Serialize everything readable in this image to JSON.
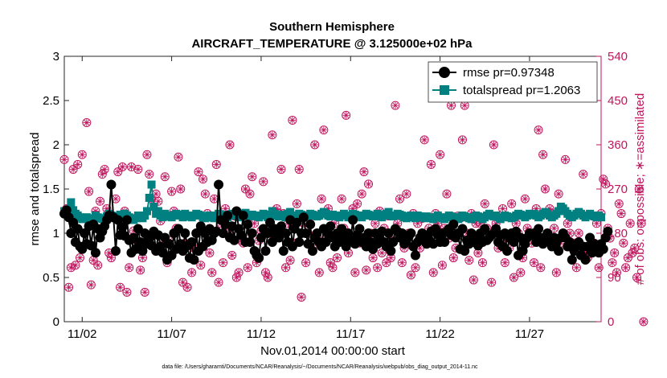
{
  "chart_data": {
    "type": "line",
    "title": "Southern Hemisphere",
    "subtitle": "AIRCRAFT_TEMPERATURE @ 3.125000e+02 hPa",
    "xlabel": "Nov.01,2014 00:00:00 start",
    "ylabel": "rmse and totalspread",
    "ylabel_right": "# of obs: o=possible; ∗=assimilated",
    "footnote": "data file: /Users/gharamti/Documents/NCAR/Reanalysis/~/Documents/NCAR/Reanalysis/webpub/obs_diag_output_2014-11.nc",
    "xlim": [
      1.0,
      31.0
    ],
    "ylim": [
      0,
      3
    ],
    "ylim_right": [
      0,
      540
    ],
    "x_ticks": [
      2,
      7,
      12,
      17,
      22,
      27
    ],
    "x_tick_labels": [
      "11/02",
      "11/07",
      "11/12",
      "11/17",
      "11/22",
      "11/27"
    ],
    "y_ticks": [
      0,
      0.5,
      1,
      1.5,
      2,
      2.5,
      3
    ],
    "y_tick_labels": [
      "0",
      "0.5",
      "1",
      "1.5",
      "2",
      "2.5",
      "3"
    ],
    "y_right_ticks": [
      0,
      90,
      180,
      270,
      360,
      450,
      540
    ],
    "y_right_tick_labels": [
      "0",
      "90",
      "180",
      "270",
      "360",
      "450",
      "540"
    ],
    "x_step_days": 0.125,
    "x_start": 1.0,
    "colors": {
      "rmse": "#000000",
      "totalspread": "#008080",
      "obs": "#c0155d"
    },
    "series": [
      {
        "name": "rmse pr=0.97348",
        "values": [
          1.22,
          1.26,
          1.18,
          1.0,
          1.12,
          0.9,
          1.05,
          0.85,
          0.82,
          1.0,
          0.88,
          1.08,
          0.86,
          1.1,
          0.78,
          1.05,
          0.95,
          1.02,
          1.08,
          1.15,
          1.2,
          1.55,
          1.18,
          0.8,
          1.15,
          0.98,
          1.07,
          0.97,
          1.15,
          0.92,
          0.78,
          0.95,
          0.82,
          1.05,
          0.9,
          0.8,
          1.0,
          0.88,
          0.94,
          0.86,
          1.02,
          0.8,
          0.98,
          0.85,
          0.78,
          0.95,
          0.7,
          0.88,
          0.75,
          1.0,
          0.82,
          1.05,
          0.88,
          0.8,
          1.0,
          0.86,
          0.72,
          0.9,
          0.7,
          1.0,
          0.8,
          1.08,
          0.85,
          1.0,
          0.9,
          1.05,
          0.92,
          1.0,
          1.02,
          1.55,
          1.15,
          1.0,
          1.1,
          1.2,
          0.95,
          1.08,
          0.92,
          1.25,
          1.05,
          0.98,
          1.2,
          0.9,
          1.1,
          0.9,
          1.0,
          0.8,
          0.75,
          0.72,
          0.95,
          1.05,
          0.8,
          1.0,
          1.12,
          0.9,
          1.05,
          1.0,
          0.95,
          1.08,
          0.8,
          1.0,
          0.9,
          1.15,
          0.85,
          1.05,
          1.12,
          0.9,
          1.0,
          1.18,
          1.0,
          0.88,
          1.1,
          0.8,
          0.95,
          1.0,
          0.9,
          0.85,
          1.05,
          0.9,
          1.0,
          1.08,
          0.95,
          0.85,
          1.0,
          0.9,
          1.05,
          0.95,
          0.85,
          1.0,
          0.92,
          1.15,
          0.88,
          0.98,
          1.05,
          0.9,
          0.95,
          0.85,
          1.0,
          0.9,
          0.82,
          1.0,
          0.88,
          0.95,
          1.02,
          0.9,
          0.85,
          1.0,
          0.8,
          0.9,
          1.05,
          1.02,
          0.95,
          1.0,
          0.88,
          0.92,
          0.96,
          1.0,
          0.85,
          0.75,
          0.9,
          0.95,
          1.0,
          0.96,
          0.88,
          0.92,
          1.02,
          0.88,
          1.05,
          0.98,
          0.9,
          1.0,
          0.9,
          1.02,
          1.05,
          0.98,
          1.1,
          0.95,
          1.0,
          0.82,
          1.05,
          0.8,
          0.92,
          0.88,
          1.0,
          0.9,
          0.95,
          0.86,
          1.0,
          0.9,
          1.05,
          0.92,
          0.95,
          0.98,
          1.0,
          1.05,
          0.9,
          0.98,
          0.85,
          1.0,
          0.8,
          0.95,
          1.0,
          0.9,
          1.02,
          0.75,
          0.95,
          0.8,
          0.88,
          0.95,
          1.0,
          0.98,
          1.0,
          0.9,
          1.05,
          0.95,
          0.88,
          0.92,
          1.0,
          0.9,
          0.85,
          0.95,
          0.9,
          0.8,
          0.95,
          1.0,
          0.95,
          0.85,
          0.9,
          0.7,
          0.8,
          0.85,
          0.9,
          0.75,
          0.85,
          0.7,
          0.85,
          0.95,
          0.78,
          0.88,
          0.8,
          0.78,
          0.88,
          0.82,
          0.95,
          1.02
        ],
        "marker": "circle"
      },
      {
        "name": "totalspread pr=1.2063",
        "values": [
          1.25,
          1.24,
          1.27,
          1.35,
          1.26,
          1.22,
          1.2,
          1.18,
          1.16,
          1.17,
          1.18,
          1.15,
          1.16,
          1.17,
          1.2,
          1.18,
          1.17,
          1.16,
          1.15,
          1.19,
          1.22,
          1.2,
          1.18,
          1.17,
          1.19,
          1.21,
          1.2,
          1.22,
          1.2,
          1.18,
          1.16,
          1.15,
          1.17,
          1.2,
          1.18,
          1.17,
          1.2,
          1.25,
          1.4,
          1.55,
          1.3,
          1.22,
          1.25,
          1.2,
          1.18,
          1.22,
          1.2,
          1.19,
          1.18,
          1.2,
          1.22,
          1.21,
          1.2,
          1.18,
          1.22,
          1.2,
          1.19,
          1.18,
          1.2,
          1.22,
          1.21,
          1.2,
          1.18,
          1.17,
          1.19,
          1.2,
          1.18,
          1.17,
          1.2,
          1.22,
          1.2,
          1.21,
          1.19,
          1.18,
          1.2,
          1.22,
          1.21,
          1.2,
          1.18,
          1.2,
          1.22,
          1.23,
          1.2,
          1.19,
          1.21,
          1.2,
          1.19,
          1.18,
          1.2,
          1.22,
          1.2,
          1.18,
          1.21,
          1.25,
          1.22,
          1.2,
          1.19,
          1.21,
          1.2,
          1.18,
          1.22,
          1.24,
          1.2,
          1.18,
          1.2,
          1.22,
          1.21,
          1.2,
          1.19,
          1.2,
          1.22,
          1.21,
          1.2,
          1.19,
          1.2,
          1.22,
          1.24,
          1.22,
          1.2,
          1.19,
          1.21,
          1.2,
          1.19,
          1.18,
          1.2,
          1.22,
          1.2,
          1.18,
          1.2,
          1.22,
          1.21,
          1.2,
          1.19,
          1.18,
          1.2,
          1.22,
          1.21,
          1.2,
          1.19,
          1.2,
          1.22,
          1.2,
          1.18,
          1.2,
          1.22,
          1.24,
          1.2,
          1.19,
          1.2,
          1.22,
          1.21,
          1.2,
          1.18,
          1.17,
          1.19,
          1.2,
          1.18,
          1.17,
          1.2,
          1.19,
          1.18,
          1.17,
          1.19,
          1.18,
          1.17,
          1.16,
          1.18,
          1.2,
          1.18,
          1.17,
          1.16,
          1.18,
          1.2,
          1.19,
          1.18,
          1.17,
          1.16,
          1.18,
          1.2,
          1.19,
          1.18,
          1.17,
          1.16,
          1.18,
          1.2,
          1.19,
          1.18,
          1.16,
          1.18,
          1.2,
          1.22,
          1.2,
          1.19,
          1.2,
          1.18,
          1.16,
          1.18,
          1.2,
          1.19,
          1.18,
          1.17,
          1.18,
          1.2,
          1.22,
          1.21,
          1.2,
          1.18,
          1.2,
          1.22,
          1.21,
          1.22,
          1.2,
          1.18,
          1.2,
          1.22,
          1.24,
          1.22,
          1.2,
          1.18,
          1.2,
          1.22,
          1.25,
          1.3,
          1.28,
          1.25,
          1.22,
          1.2,
          1.18,
          1.2,
          1.22,
          1.24,
          1.22,
          1.2,
          1.18,
          1.2,
          1.22,
          1.2,
          1.19,
          1.18,
          1.2,
          1.18
        ],
        "marker": "square"
      }
    ],
    "obs_count": {
      "name": "# of obs",
      "axis": "right",
      "values": [
        330,
        230,
        70,
        110,
        310,
        115,
        320,
        130,
        340,
        155,
        405,
        265,
        75,
        125,
        225,
        115,
        245,
        300,
        310,
        230,
        140,
        130,
        215,
        250,
        305,
        70,
        315,
        225,
        60,
        110,
        315,
        185,
        160,
        310,
        105,
        130,
        60,
        340,
        300,
        250,
        180,
        260,
        245,
        205,
        170,
        295,
        120,
        165,
        265,
        225,
        190,
        335,
        270,
        80,
        160,
        70,
        155,
        100,
        150,
        180,
        305,
        115,
        290,
        260,
        220,
        140,
        100,
        250,
        320,
        80,
        200,
        120,
        230,
        180,
        360,
        135,
        215,
        90,
        100,
        165,
        160,
        270,
        110,
        260,
        295,
        200,
        120,
        165,
        185,
        285,
        100,
        90,
        180,
        380,
        170,
        230,
        220,
        310,
        220,
        110,
        200,
        125,
        410,
        160,
        240,
        310,
        50,
        200,
        120,
        180,
        215,
        150,
        360,
        175,
        100,
        250,
        390,
        170,
        230,
        120,
        110,
        200,
        130,
        165,
        250,
        190,
        420,
        140,
        165,
        230,
        100,
        240,
        160,
        260,
        305,
        105,
        280,
        180,
        130,
        200,
        110,
        225,
        140,
        190,
        120,
        215,
        130,
        165,
        440,
        200,
        250,
        120,
        150,
        260,
        180,
        95,
        220,
        110,
        200,
        150,
        210,
        370,
        165,
        190,
        320,
        100,
        220,
        200,
        340,
        115,
        190,
        260,
        170,
        440,
        130,
        150,
        215,
        210,
        370,
        440,
        180,
        125,
        220,
        85,
        200,
        140,
        200,
        120,
        240,
        190,
        180,
        80,
        360,
        200,
        150,
        170,
        230,
        120,
        170,
        150,
        240,
        90,
        200,
        180,
        100,
        130,
        250,
        190,
        180,
        160,
        120,
        230,
        390,
        110,
        340,
        270,
        165,
        230,
        220,
        190,
        100,
        260,
        160,
        180,
        330,
        200,
        180,
        150,
        160,
        110,
        180,
        220,
        300,
        140,
        130,
        170,
        140,
        160,
        200,
        110,
        220,
        290,
        280,
        190,
        170,
        120,
        140,
        100,
        240,
        220,
        160,
        110,
        130,
        200,
        140,
        150,
        90,
        270,
        200,
        0
      ],
      "marker": "circle-star"
    }
  }
}
